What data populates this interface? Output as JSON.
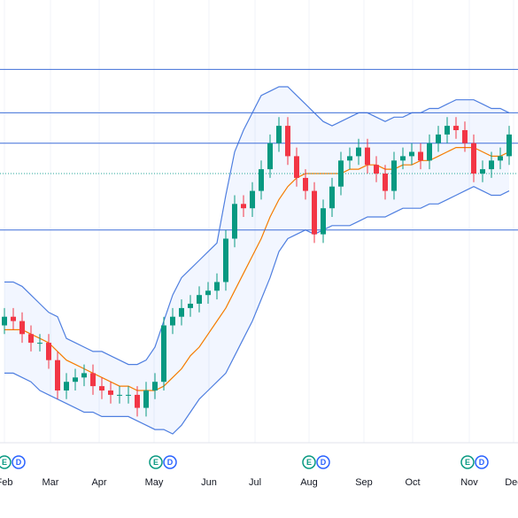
{
  "chart_data": {
    "type": "candlestick",
    "ylim": [
      0,
      100
    ],
    "up_color": "#089981",
    "down_color": "#f23645",
    "open": [
      25,
      27,
      26,
      23,
      21,
      21,
      17,
      10,
      12,
      13,
      14,
      11,
      10,
      9,
      9,
      9,
      6,
      10,
      12,
      25,
      27,
      29,
      30,
      32,
      33,
      35,
      45,
      53,
      52,
      56,
      61,
      67,
      71,
      64,
      59,
      56,
      46,
      52,
      57,
      63,
      64,
      66,
      62,
      60,
      56,
      63,
      64,
      65,
      63,
      67,
      69,
      71,
      70,
      67,
      60,
      61,
      63,
      64
    ],
    "high": [
      29,
      29,
      28,
      25,
      23,
      23,
      19,
      14,
      15,
      16,
      16,
      13,
      12,
      11,
      11,
      11,
      12,
      14,
      27,
      29,
      31,
      32,
      34,
      35,
      37,
      47,
      55,
      55,
      58,
      63,
      69,
      73,
      73,
      66,
      61,
      58,
      54,
      59,
      65,
      66,
      68,
      68,
      64,
      62,
      65,
      66,
      67,
      67,
      69,
      71,
      73,
      73,
      72,
      69,
      63,
      65,
      66,
      71
    ],
    "low": [
      23,
      24,
      21,
      19,
      19,
      15,
      8,
      8,
      10,
      11,
      9,
      8,
      7,
      7,
      7,
      4,
      4,
      8,
      10,
      23,
      25,
      27,
      28,
      30,
      31,
      33,
      43,
      50,
      50,
      54,
      59,
      65,
      62,
      57,
      54,
      44,
      44,
      50,
      55,
      61,
      62,
      60,
      58,
      54,
      54,
      61,
      62,
      61,
      61,
      65,
      67,
      68,
      65,
      58,
      58,
      59,
      61,
      62
    ],
    "close": [
      27,
      26,
      23,
      21,
      21,
      17,
      10,
      12,
      13,
      14,
      11,
      10,
      9,
      9,
      9,
      6,
      10,
      12,
      25,
      27,
      29,
      30,
      32,
      33,
      35,
      45,
      53,
      52,
      56,
      61,
      67,
      71,
      64,
      59,
      56,
      46,
      52,
      57,
      63,
      64,
      66,
      62,
      60,
      56,
      63,
      64,
      65,
      63,
      67,
      69,
      71,
      70,
      67,
      60,
      61,
      63,
      64,
      69
    ],
    "moving_average": {
      "color": "#f57c00",
      "values": [
        24,
        24,
        24,
        23,
        22,
        21,
        19,
        17,
        16,
        15,
        14,
        13,
        12,
        11,
        11,
        10,
        10,
        10,
        11,
        13,
        15,
        18,
        20,
        23,
        26,
        29,
        33,
        37,
        41,
        45,
        50,
        54,
        57,
        59,
        60,
        60,
        60,
        60,
        60,
        61,
        61,
        62,
        62,
        61,
        61,
        62,
        62,
        63,
        63,
        64,
        65,
        66,
        66,
        66,
        65,
        64,
        64,
        65
      ]
    },
    "upper_band": {
      "color": "#4f7fe0",
      "values": [
        35,
        35,
        34,
        32,
        30,
        28,
        27,
        22,
        21,
        20,
        19,
        19,
        18,
        17,
        16,
        16,
        17,
        20,
        26,
        32,
        36,
        38,
        40,
        42,
        44,
        55,
        65,
        70,
        74,
        78,
        79,
        80,
        80,
        78,
        76,
        74,
        72,
        71,
        72,
        73,
        74,
        74,
        73,
        72,
        73,
        73,
        74,
        74,
        75,
        75,
        76,
        77,
        77,
        77,
        76,
        75,
        75,
        74
      ]
    },
    "lower_band": {
      "color": "#4f7fe0",
      "values": [
        14,
        14,
        13,
        12,
        10,
        9,
        8,
        7,
        6,
        5,
        5,
        4,
        4,
        4,
        4,
        3,
        2,
        1,
        1,
        0,
        2,
        5,
        8,
        10,
        12,
        14,
        18,
        22,
        26,
        31,
        36,
        42,
        45,
        46,
        47,
        46,
        47,
        48,
        48,
        48,
        49,
        50,
        50,
        50,
        51,
        52,
        52,
        52,
        53,
        53,
        54,
        55,
        56,
        57,
        56,
        55,
        55,
        56
      ]
    },
    "band_fill": "#2962ff",
    "price_lines": {
      "color": "#3f6fd8",
      "values": [
        84,
        74,
        67,
        47
      ]
    },
    "dotted_line": {
      "color": "#26a69a",
      "value": 60
    },
    "grid": true,
    "month_ticks": [
      {
        "value": 0,
        "label": "Feb"
      },
      {
        "value": 5.2,
        "label": "Mar"
      },
      {
        "value": 10.7,
        "label": "Apr"
      },
      {
        "value": 16.9,
        "label": "May"
      },
      {
        "value": 23.1,
        "label": "Jun"
      },
      {
        "value": 28.3,
        "label": "Jul"
      },
      {
        "value": 34.4,
        "label": "Aug"
      },
      {
        "value": 40.6,
        "label": "Sep"
      },
      {
        "value": 46.1,
        "label": "Oct"
      },
      {
        "value": 52.5,
        "label": "Nov"
      },
      {
        "value": 57.5,
        "label": "Dec"
      }
    ],
    "events": [
      {
        "value": 0,
        "labels": [
          "E",
          "D"
        ]
      },
      {
        "value": 17.1,
        "labels": [
          "E",
          "D"
        ]
      },
      {
        "value": 34.4,
        "labels": [
          "E",
          "D"
        ]
      },
      {
        "value": 52.3,
        "labels": [
          "E",
          "D"
        ]
      }
    ]
  }
}
